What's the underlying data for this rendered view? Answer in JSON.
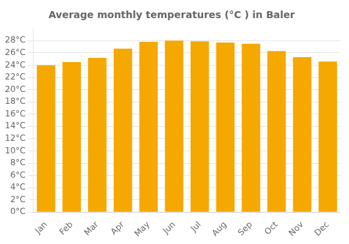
{
  "chart_data": {
    "type": "bar",
    "title": "Average monthly temperatures (°C ) in Baler",
    "categories": [
      "Jan",
      "Feb",
      "Mar",
      "Apr",
      "May",
      "Jun",
      "Jul",
      "Aug",
      "Sep",
      "Oct",
      "Nov",
      "Dec"
    ],
    "values": [
      24.0,
      24.5,
      25.2,
      26.7,
      27.8,
      28.0,
      27.9,
      27.7,
      27.5,
      26.3,
      25.3,
      24.6
    ],
    "color": "#F5A800",
    "ylim": [
      0,
      30
    ],
    "yticks": [
      {
        "value": 0,
        "label": "0°C"
      },
      {
        "value": 2,
        "label": "2°C"
      },
      {
        "value": 4,
        "label": "4°C"
      },
      {
        "value": 6,
        "label": "6°C"
      },
      {
        "value": 8,
        "label": "8°C"
      },
      {
        "value": 10,
        "label": "10°C"
      },
      {
        "value": 12,
        "label": "12°C"
      },
      {
        "value": 14,
        "label": "14°C"
      },
      {
        "value": 16,
        "label": "16°C"
      },
      {
        "value": 18,
        "label": "18°C"
      },
      {
        "value": 20,
        "label": "20°C"
      },
      {
        "value": 22,
        "label": "22°C"
      },
      {
        "value": 24,
        "label": "24°C"
      },
      {
        "value": 26,
        "label": "26°C"
      },
      {
        "value": 28,
        "label": "28°C"
      }
    ],
    "grid": true
  }
}
